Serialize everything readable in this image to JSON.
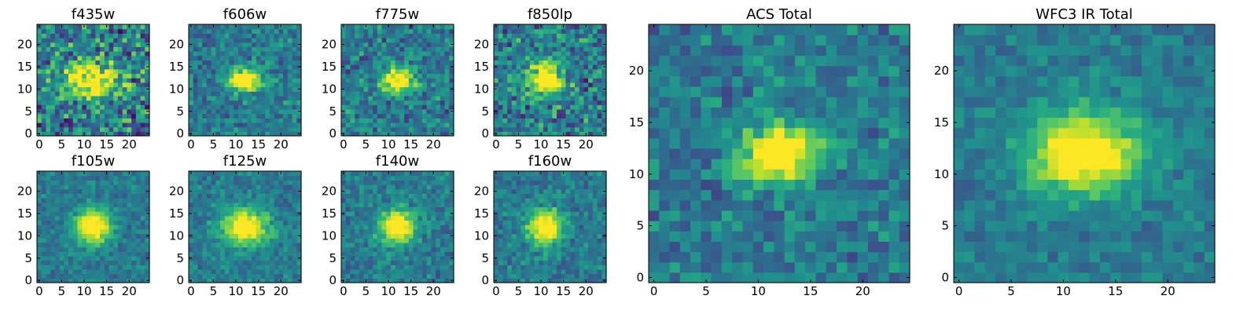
{
  "chart_data": [
    {
      "type": "heatmap",
      "title": "f435w",
      "xlim": [
        0,
        24
      ],
      "ylim": [
        0,
        24
      ],
      "xticks": [
        0,
        5,
        10,
        15,
        20
      ],
      "yticks": [
        0,
        5,
        10,
        15,
        20
      ],
      "peak": [
        11,
        12
      ],
      "size": [
        5,
        3
      ],
      "noise": 0.55,
      "grid": false
    },
    {
      "type": "heatmap",
      "title": "f606w",
      "xlim": [
        0,
        24
      ],
      "ylim": [
        0,
        24
      ],
      "xticks": [
        0,
        5,
        10,
        15,
        20
      ],
      "yticks": [
        0,
        5,
        10,
        15,
        20
      ],
      "peak": [
        12,
        12
      ],
      "size": [
        3,
        2
      ],
      "noise": 0.3,
      "grid": false
    },
    {
      "type": "heatmap",
      "title": "f775w",
      "xlim": [
        0,
        24
      ],
      "ylim": [
        0,
        24
      ],
      "xticks": [
        0,
        5,
        10,
        15,
        20
      ],
      "yticks": [
        0,
        5,
        10,
        15,
        20
      ],
      "peak": [
        12,
        12
      ],
      "size": [
        3,
        2
      ],
      "noise": 0.35,
      "grid": false
    },
    {
      "type": "heatmap",
      "title": "f850lp",
      "xlim": [
        0,
        24
      ],
      "ylim": [
        0,
        24
      ],
      "xticks": [
        0,
        5,
        10,
        15,
        20
      ],
      "yticks": [
        0,
        5,
        10,
        15,
        20
      ],
      "peak": [
        11,
        12
      ],
      "size": [
        3,
        3
      ],
      "noise": 0.45,
      "grid": false
    },
    {
      "type": "heatmap",
      "title": "f105w",
      "xlim": [
        0,
        24
      ],
      "ylim": [
        0,
        24
      ],
      "xticks": [
        0,
        5,
        10,
        15,
        20
      ],
      "yticks": [
        0,
        5,
        10,
        15,
        20
      ],
      "peak": [
        12,
        12
      ],
      "size": [
        3,
        3
      ],
      "noise": 0.2,
      "grid": false
    },
    {
      "type": "heatmap",
      "title": "f125w",
      "xlim": [
        0,
        24
      ],
      "ylim": [
        0,
        24
      ],
      "xticks": [
        0,
        5,
        10,
        15,
        20
      ],
      "yticks": [
        0,
        5,
        10,
        15,
        20
      ],
      "peak": [
        12,
        12
      ],
      "size": [
        4,
        3
      ],
      "noise": 0.22,
      "grid": false
    },
    {
      "type": "heatmap",
      "title": "f140w",
      "xlim": [
        0,
        24
      ],
      "ylim": [
        0,
        24
      ],
      "xticks": [
        0,
        5,
        10,
        15,
        20
      ],
      "yticks": [
        0,
        5,
        10,
        15,
        20
      ],
      "peak": [
        12,
        12
      ],
      "size": [
        3,
        3
      ],
      "noise": 0.25,
      "grid": false
    },
    {
      "type": "heatmap",
      "title": "f160w",
      "xlim": [
        0,
        24
      ],
      "ylim": [
        0,
        24
      ],
      "xticks": [
        0,
        5,
        10,
        15,
        20
      ],
      "yticks": [
        0,
        5,
        10,
        15,
        20
      ],
      "peak": [
        11,
        12
      ],
      "size": [
        3,
        3
      ],
      "noise": 0.25,
      "grid": false
    },
    {
      "type": "heatmap",
      "title": "ACS Total",
      "xlim": [
        0,
        24
      ],
      "ylim": [
        0,
        24
      ],
      "xticks": [
        0,
        5,
        10,
        15,
        20
      ],
      "yticks": [
        0,
        5,
        10,
        15,
        20
      ],
      "peak": [
        12,
        12
      ],
      "size": [
        3,
        2
      ],
      "noise": 0.28,
      "grid": false
    },
    {
      "type": "heatmap",
      "title": "WFC3 IR Total",
      "xlim": [
        0,
        24
      ],
      "ylim": [
        0,
        24
      ],
      "xticks": [
        0,
        5,
        10,
        15,
        20
      ],
      "yticks": [
        0,
        5,
        10,
        15,
        20
      ],
      "peak": [
        12,
        12
      ],
      "size": [
        4,
        3
      ],
      "noise": 0.18,
      "grid": false
    }
  ],
  "colormap": "viridis"
}
